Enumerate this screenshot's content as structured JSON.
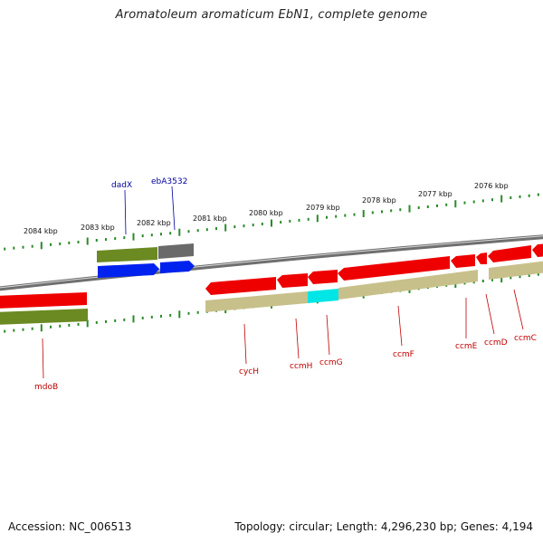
{
  "title": "Aromatoleum aromaticum EbN1, complete genome",
  "footer": {
    "accession": "Accession: NC_006513",
    "summary": "Topology: circular; Length: 4,296,230 bp; Genes: 4,194"
  },
  "colors": {
    "forward_cds": "#0022ee",
    "reverse_cds": "#ee0000",
    "gene_olive": "#6b8a22",
    "gene_khaki": "#c8c08a",
    "gene_gray": "#6a6a6a",
    "gene_cyan": "#00e5e5",
    "ruler_tick": "#2a8a2a",
    "backbone": "#808080",
    "label_red": "#c00000",
    "label_blue": "#0000a0"
  },
  "scale_labels": [
    "2084 kbp",
    "2083 kbp",
    "2082 kbp",
    "2081 kbp",
    "2080 kbp",
    "2079 kbp",
    "2078 kbp",
    "2077 kbp",
    "2076 kbp"
  ],
  "genes_top": [
    "dadX",
    "ebA3532"
  ],
  "genes_bottom": [
    "mdoB",
    "cycH",
    "ccmH",
    "ccmG",
    "ccmF",
    "ccmE",
    "ccmD",
    "ccmC"
  ]
}
